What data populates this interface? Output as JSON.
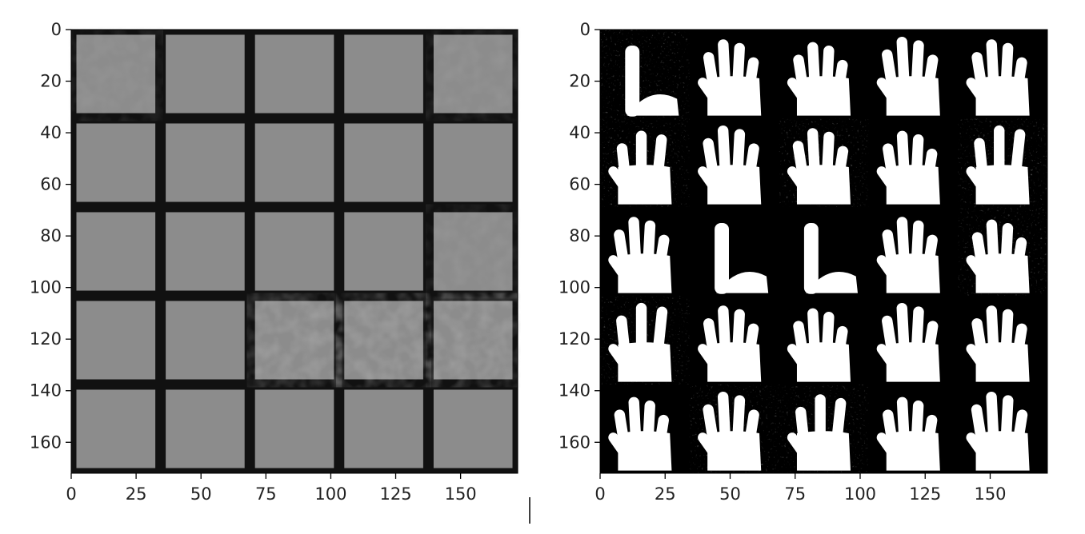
{
  "figure": {
    "panels": [
      {
        "name": "left-panel",
        "description_hidden": true,
        "image": {
          "rows": 5,
          "cols": 5,
          "tile_fill": "#8c8c8c",
          "gap_fill": "#111111"
        },
        "x_ticks": [
          "0",
          "25",
          "50",
          "75",
          "100",
          "125",
          "150"
        ],
        "y_ticks": [
          "0",
          "20",
          "40",
          "60",
          "80",
          "100",
          "120",
          "140",
          "160"
        ],
        "x_tick_values": [
          0,
          25,
          50,
          75,
          100,
          125,
          150
        ],
        "y_tick_values": [
          0,
          20,
          40,
          60,
          80,
          100,
          120,
          140,
          160
        ],
        "extent": [
          0,
          172,
          172,
          0
        ]
      },
      {
        "name": "right-panel",
        "image": {
          "rows": 5,
          "cols": 5,
          "tile_fill": "#000000",
          "hand_fill": "#ffffff"
        },
        "x_ticks": [
          "0",
          "25",
          "50",
          "75",
          "100",
          "125",
          "150"
        ],
        "y_ticks": [
          "0",
          "20",
          "40",
          "60",
          "80",
          "100",
          "120",
          "140",
          "160"
        ],
        "x_tick_values": [
          0,
          25,
          50,
          75,
          100,
          125,
          150
        ],
        "y_tick_values": [
          0,
          20,
          40,
          60,
          80,
          100,
          120,
          140,
          160
        ],
        "extent": [
          0,
          172,
          172,
          0
        ],
        "hand_fingers": [
          [
            2,
            2,
            0,
            0,
            0
          ],
          [
            0,
            0,
            0,
            0,
            0
          ],
          [
            0,
            0,
            0,
            0,
            0
          ],
          [
            0,
            0,
            2,
            0,
            0
          ],
          [
            0,
            0,
            0,
            0,
            0
          ],
          [
            1,
            0,
            0,
            0,
            2
          ],
          [
            0,
            0,
            0,
            0,
            0
          ],
          [
            0,
            2,
            0,
            0,
            0
          ],
          [
            0,
            0,
            0,
            0,
            0
          ],
          [
            1,
            0,
            0,
            0,
            0
          ],
          [
            0,
            1,
            0,
            0,
            1
          ],
          [
            2,
            0,
            0,
            0,
            0
          ],
          [
            2,
            0,
            0,
            0,
            0
          ],
          [
            0,
            0,
            0,
            0,
            0
          ],
          [
            0,
            0,
            0,
            0,
            0
          ],
          [
            1,
            0,
            0,
            0,
            0
          ],
          [
            0,
            0,
            0,
            0,
            0
          ],
          [
            0,
            2,
            0,
            0,
            0
          ],
          [
            0,
            0,
            0,
            0,
            0
          ],
          [
            0,
            0,
            0,
            0,
            0
          ],
          [
            0,
            0,
            0,
            0,
            0
          ],
          [
            0,
            0,
            0,
            0,
            0
          ],
          [
            1,
            0,
            0,
            0,
            0
          ],
          [
            0,
            0,
            0,
            0,
            0
          ],
          [
            0,
            0,
            0,
            0,
            0
          ]
        ]
      }
    ]
  }
}
